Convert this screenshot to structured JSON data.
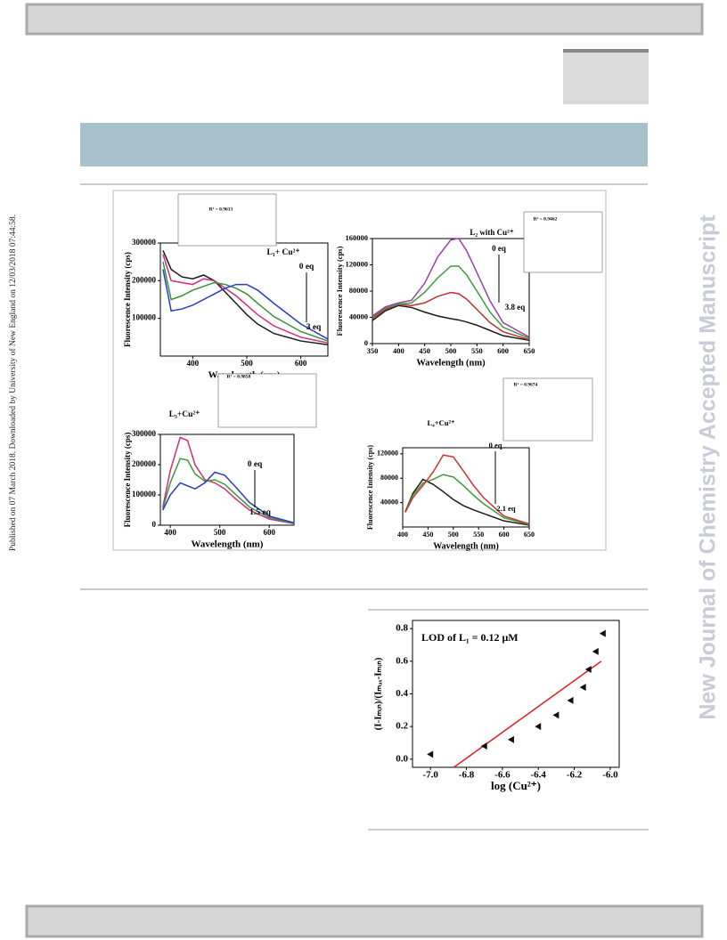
{
  "sidebar_left": "Published on 07 March 2018. Downloaded by University of New England on 12/03/2018 07:44:58.",
  "sidebar_right": "New Journal of Chemistry Accepted Manuscript",
  "chart_data": [
    {
      "type": "line",
      "ylabel": "Fluorescence Intensity (cps)",
      "xlabel": "Wavelength (nm)",
      "annotations": [
        "L₁+ Cu²⁺",
        "0 eq",
        "3 eq",
        "R² = 0.9613"
      ],
      "xlim": [
        340,
        650
      ],
      "ylim": [
        0,
        300000
      ],
      "xticks": [
        400,
        500,
        600
      ],
      "yticks": [
        100000,
        200000,
        300000
      ],
      "x": [
        345,
        360,
        380,
        400,
        420,
        440,
        460,
        480,
        500,
        520,
        550,
        600,
        650
      ],
      "series": [
        {
          "color": "#1a1a1a",
          "values": [
            280000,
            230000,
            210000,
            205000,
            215000,
            200000,
            170000,
            140000,
            110000,
            85000,
            60000,
            40000,
            30000
          ]
        },
        {
          "color": "#d42a7a",
          "values": [
            270000,
            200000,
            195000,
            190000,
            205000,
            200000,
            180000,
            160000,
            135000,
            110000,
            80000,
            50000,
            35000
          ]
        },
        {
          "color": "#3a8f3a",
          "values": [
            250000,
            150000,
            160000,
            175000,
            185000,
            195000,
            190000,
            180000,
            165000,
            140000,
            105000,
            65000,
            40000
          ]
        },
        {
          "color": "#2a3cc0",
          "values": [
            230000,
            120000,
            125000,
            135000,
            150000,
            165000,
            180000,
            190000,
            190000,
            175000,
            140000,
            85000,
            45000
          ]
        }
      ]
    },
    {
      "type": "line",
      "ylabel": "Fluorescence Intensity (cps)",
      "xlabel": "Wavelength (nm)",
      "annotations": [
        "L₂ with Cu²⁺",
        "0 eq",
        "3.8 eq",
        "R² = 0.9462"
      ],
      "xlim": [
        350,
        650
      ],
      "ylim": [
        0,
        160000
      ],
      "xticks": [
        350,
        400,
        450,
        500,
        550,
        600,
        650
      ],
      "yticks": [
        0,
        40000,
        80000,
        120000,
        160000
      ],
      "x": [
        350,
        375,
        400,
        425,
        450,
        475,
        500,
        515,
        530,
        550,
        575,
        600,
        650
      ],
      "series": [
        {
          "color": "#1a1a1a",
          "values": [
            35000,
            50000,
            58000,
            55000,
            48000,
            42000,
            38000,
            36000,
            33000,
            28000,
            20000,
            12000,
            5000
          ]
        },
        {
          "color": "#c03030",
          "values": [
            38000,
            52000,
            60000,
            58000,
            62000,
            72000,
            78000,
            76000,
            68000,
            52000,
            32000,
            18000,
            6000
          ]
        },
        {
          "color": "#3a9a3a",
          "values": [
            40000,
            54000,
            60000,
            62000,
            78000,
            100000,
            118000,
            118000,
            105000,
            80000,
            48000,
            25000,
            8000
          ]
        },
        {
          "color": "#9b3fa8",
          "values": [
            42000,
            56000,
            62000,
            66000,
            92000,
            132000,
            158000,
            160000,
            142000,
            108000,
            65000,
            32000,
            10000
          ]
        }
      ]
    },
    {
      "type": "line",
      "ylabel": "Fluorescence Intensity (cps)",
      "xlabel": "Wavelength (nm)",
      "annotations": [
        "L₃+Cu²⁺",
        "0 eq",
        "1.5 eq",
        "R² = 0.9858"
      ],
      "xlim": [
        380,
        650
      ],
      "ylim": [
        0,
        300000
      ],
      "xticks": [
        400,
        500,
        600
      ],
      "yticks": [
        0,
        100000,
        200000,
        300000
      ],
      "x": [
        385,
        400,
        420,
        435,
        450,
        470,
        490,
        510,
        530,
        560,
        600,
        650
      ],
      "series": [
        {
          "color": "#d42a7a",
          "values": [
            60000,
            180000,
            290000,
            280000,
            200000,
            150000,
            140000,
            120000,
            90000,
            50000,
            20000,
            5000
          ]
        },
        {
          "color": "#3a9a3a",
          "values": [
            55000,
            140000,
            220000,
            215000,
            170000,
            145000,
            150000,
            135000,
            105000,
            60000,
            25000,
            6000
          ]
        },
        {
          "color": "#2a3cc0",
          "values": [
            50000,
            100000,
            140000,
            130000,
            120000,
            140000,
            175000,
            165000,
            130000,
            75000,
            30000,
            8000
          ]
        }
      ]
    },
    {
      "type": "line",
      "ylabel": "Fluorescence Intensity (cps)",
      "xlabel": "Wavelength (nm)",
      "annotations": [
        "L₄+Cu²⁺",
        "0 eq",
        "2.1 eq",
        "R² = 0.9674"
      ],
      "xlim": [
        400,
        650
      ],
      "ylim": [
        0,
        130000
      ],
      "xticks": [
        400,
        450,
        500,
        550,
        600,
        650
      ],
      "yticks": [
        40000,
        80000,
        120000
      ],
      "x": [
        405,
        420,
        440,
        460,
        480,
        500,
        520,
        540,
        560,
        600,
        650
      ],
      "series": [
        {
          "color": "#1a1a1a",
          "values": [
            25000,
            55000,
            78000,
            70000,
            58000,
            45000,
            35000,
            28000,
            22000,
            10000,
            3000
          ]
        },
        {
          "color": "#3a9a3a",
          "values": [
            25000,
            52000,
            72000,
            78000,
            86000,
            82000,
            68000,
            52000,
            38000,
            15000,
            4000
          ]
        },
        {
          "color": "#d03030",
          "values": [
            24000,
            48000,
            68000,
            90000,
            118000,
            115000,
            92000,
            68000,
            48000,
            18000,
            5000
          ]
        }
      ]
    },
    {
      "type": "scatter",
      "text": "LOD of L₁ = 0.12 μM",
      "xlabel": "log (Cu²⁺)",
      "ylabel": "(I-Iₘᵢₙ)/(Iₘₐₓ-Iₘᵢₙ)",
      "xlim": [
        -7.1,
        -5.95
      ],
      "ylim": [
        -0.05,
        0.85
      ],
      "xticks": [
        {
          "value": -7,
          "label": "-7.0"
        },
        -6.8,
        -6.6,
        -6.4,
        -6.2,
        {
          "value": -6,
          "label": "-6.0"
        }
      ],
      "yticks": [
        {
          "value": 0,
          "label": "0.0"
        },
        0.2,
        0.4,
        0.6,
        0.8
      ],
      "x": [
        -7.0,
        -6.7,
        -6.55,
        -6.4,
        -6.3,
        -6.22,
        -6.15,
        -6.12,
        -6.08,
        -6.04
      ],
      "values": [
        0.03,
        0.08,
        0.12,
        0.2,
        0.27,
        0.36,
        0.44,
        0.55,
        0.66,
        0.77
      ],
      "color": "#111111",
      "fit_line": {
        "x": [
          -6.87,
          -6.05
        ],
        "values": [
          -0.05,
          0.6
        ],
        "color": "#e02020"
      }
    }
  ]
}
